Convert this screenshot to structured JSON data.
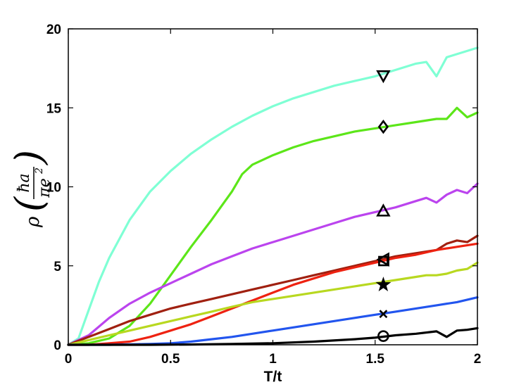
{
  "chart_data": {
    "type": "line",
    "title": "",
    "xlabel": "T/t",
    "ylabel": {
      "rho": "ρ",
      "numerator": "ħa",
      "denominator_base": "πe",
      "denominator_exponent": "2"
    },
    "xlim": [
      0,
      2
    ],
    "ylim": [
      0,
      20
    ],
    "xticks": [
      0,
      0.5,
      1,
      1.5,
      2
    ],
    "yticks": [
      0,
      5,
      10,
      15,
      20
    ],
    "xtick_labels": [
      "0",
      "0.5",
      "1",
      "1.5",
      "2"
    ],
    "ytick_labels": [
      "0",
      "5",
      "10",
      "15",
      "20"
    ],
    "grid": false,
    "legend": "none",
    "series": [
      {
        "color": "#7fffd4",
        "marker": "triangle-down",
        "marker_point": [
          1.54,
          17.0
        ],
        "x": [
          0,
          0.05,
          0.1,
          0.15,
          0.2,
          0.3,
          0.4,
          0.5,
          0.6,
          0.7,
          0.8,
          0.9,
          1.0,
          1.1,
          1.2,
          1.3,
          1.4,
          1.5,
          1.6,
          1.7,
          1.75,
          1.8,
          1.85,
          1.9,
          2.0
        ],
        "y": [
          0,
          0.4,
          2.2,
          4.0,
          5.5,
          7.9,
          9.7,
          11.0,
          12.1,
          13.0,
          13.8,
          14.5,
          15.1,
          15.6,
          16.0,
          16.4,
          16.7,
          17.0,
          17.4,
          17.8,
          17.9,
          17.0,
          18.2,
          18.4,
          18.8
        ]
      },
      {
        "color": "#5ce619",
        "marker": "diamond",
        "marker_point": [
          1.54,
          13.8
        ],
        "x": [
          0,
          0.1,
          0.2,
          0.3,
          0.4,
          0.5,
          0.6,
          0.7,
          0.8,
          0.85,
          0.9,
          1.0,
          1.1,
          1.2,
          1.3,
          1.4,
          1.5,
          1.6,
          1.7,
          1.8,
          1.85,
          1.9,
          1.95,
          2.0
        ],
        "y": [
          0,
          0.1,
          0.4,
          1.2,
          2.6,
          4.4,
          6.2,
          7.9,
          9.7,
          10.8,
          11.4,
          12.0,
          12.5,
          12.9,
          13.2,
          13.5,
          13.7,
          13.9,
          14.1,
          14.3,
          14.3,
          15.0,
          14.4,
          14.7
        ]
      },
      {
        "color": "#bb44ee",
        "marker": "triangle-up",
        "marker_point": [
          1.54,
          8.5
        ],
        "x": [
          0,
          0.1,
          0.2,
          0.3,
          0.4,
          0.5,
          0.6,
          0.7,
          0.8,
          0.9,
          1.0,
          1.1,
          1.2,
          1.3,
          1.4,
          1.5,
          1.6,
          1.7,
          1.75,
          1.8,
          1.85,
          1.9,
          1.95,
          2.0
        ],
        "y": [
          0,
          0.6,
          1.7,
          2.6,
          3.3,
          3.9,
          4.5,
          5.1,
          5.6,
          6.1,
          6.5,
          6.9,
          7.3,
          7.7,
          8.1,
          8.4,
          8.7,
          9.1,
          9.3,
          9.0,
          9.5,
          9.8,
          9.6,
          10.2
        ]
      },
      {
        "color": "#a02010",
        "marker": "triangle-left",
        "marker_point": [
          1.54,
          5.4
        ],
        "x": [
          0,
          0.1,
          0.2,
          0.3,
          0.4,
          0.5,
          0.6,
          0.7,
          0.8,
          0.9,
          1.0,
          1.1,
          1.2,
          1.3,
          1.4,
          1.5,
          1.6,
          1.7,
          1.8,
          1.85,
          1.9,
          1.95,
          2.0
        ],
        "y": [
          0,
          0.5,
          1.0,
          1.5,
          1.9,
          2.3,
          2.6,
          2.9,
          3.2,
          3.5,
          3.8,
          4.1,
          4.4,
          4.7,
          5.0,
          5.3,
          5.6,
          5.8,
          6.0,
          6.4,
          6.6,
          6.5,
          6.9
        ]
      },
      {
        "color": "#ee2211",
        "marker": "square",
        "marker_point": [
          1.54,
          5.3
        ],
        "x": [
          0,
          0.1,
          0.2,
          0.3,
          0.4,
          0.5,
          0.6,
          0.7,
          0.8,
          0.9,
          1.0,
          1.1,
          1.2,
          1.3,
          1.4,
          1.5,
          1.6,
          1.7,
          1.8,
          1.9,
          2.0
        ],
        "y": [
          0,
          0.0,
          0.1,
          0.2,
          0.5,
          0.9,
          1.3,
          1.8,
          2.3,
          2.8,
          3.3,
          3.8,
          4.2,
          4.6,
          4.9,
          5.2,
          5.5,
          5.7,
          6.0,
          6.2,
          6.4
        ]
      },
      {
        "color": "#b8d820",
        "marker": "star",
        "marker_point": [
          1.54,
          3.8
        ],
        "x": [
          0,
          0.1,
          0.2,
          0.3,
          0.4,
          0.5,
          0.6,
          0.7,
          0.8,
          0.9,
          1.0,
          1.1,
          1.2,
          1.3,
          1.4,
          1.5,
          1.6,
          1.7,
          1.75,
          1.8,
          1.85,
          1.9,
          1.95,
          2.0
        ],
        "y": [
          0,
          0.3,
          0.6,
          0.9,
          1.2,
          1.5,
          1.8,
          2.1,
          2.4,
          2.7,
          2.9,
          3.1,
          3.3,
          3.5,
          3.7,
          3.9,
          4.1,
          4.3,
          4.4,
          4.4,
          4.5,
          4.7,
          4.8,
          5.2
        ]
      },
      {
        "color": "#2255ee",
        "marker": "x",
        "marker_point": [
          1.54,
          1.95
        ],
        "x": [
          0,
          0.2,
          0.4,
          0.5,
          0.6,
          0.7,
          0.8,
          0.9,
          1.0,
          1.1,
          1.2,
          1.3,
          1.4,
          1.5,
          1.6,
          1.7,
          1.8,
          1.9,
          2.0
        ],
        "y": [
          0,
          0.0,
          0.05,
          0.1,
          0.2,
          0.35,
          0.5,
          0.7,
          0.9,
          1.1,
          1.3,
          1.5,
          1.7,
          1.9,
          2.1,
          2.3,
          2.5,
          2.7,
          3.0
        ]
      },
      {
        "color": "#000000",
        "marker": "circle",
        "marker_point": [
          1.54,
          0.55
        ],
        "x": [
          0,
          0.4,
          0.6,
          0.8,
          1.0,
          1.2,
          1.4,
          1.5,
          1.6,
          1.7,
          1.8,
          1.85,
          1.9,
          1.95,
          2.0
        ],
        "y": [
          0,
          0.0,
          0.02,
          0.05,
          0.1,
          0.2,
          0.35,
          0.45,
          0.6,
          0.7,
          0.85,
          0.5,
          0.9,
          0.95,
          1.05
        ]
      }
    ]
  }
}
